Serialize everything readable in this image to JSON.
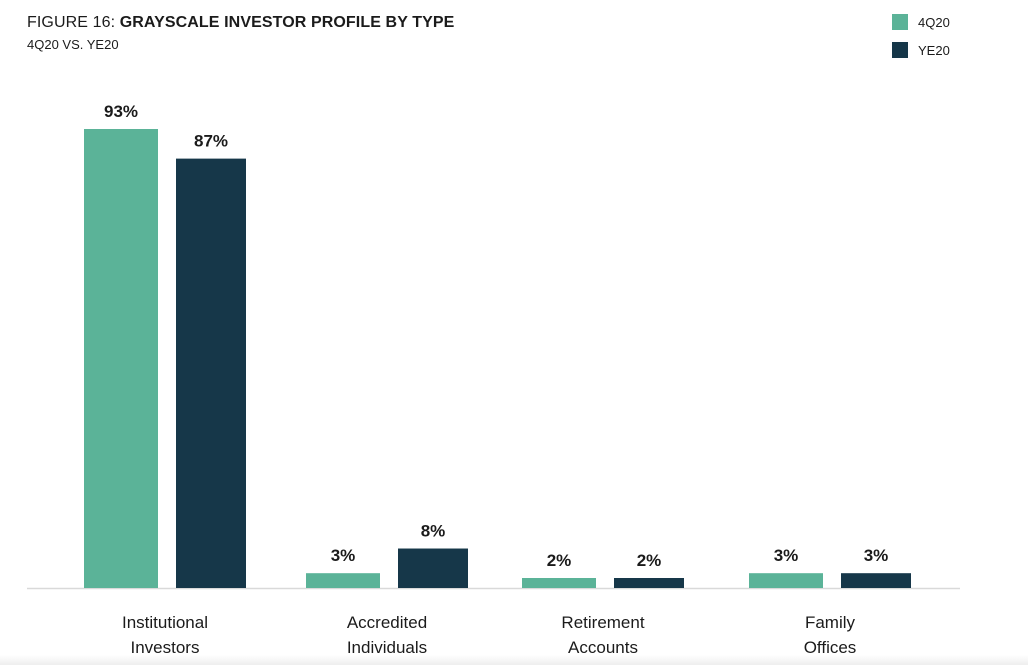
{
  "title": {
    "prefix": "FIGURE 16: ",
    "main": "GRAYSCALE INVESTOR PROFILE BY TYPE"
  },
  "subtitle": "4Q20 VS. YE20",
  "colors": {
    "series_4q20": "#5bb398",
    "series_ye20": "#163749",
    "axis": "#d9d9d9",
    "text": "#1b1b1b"
  },
  "chart_data": {
    "type": "bar",
    "title": "GRAYSCALE INVESTOR PROFILE BY TYPE",
    "subtitle": "4Q20 VS. YE20",
    "categories": [
      [
        "Institutional",
        "Investors"
      ],
      [
        "Accredited",
        "Individuals"
      ],
      [
        "Retirement",
        "Accounts"
      ],
      [
        "Family",
        "Offices"
      ]
    ],
    "series": [
      {
        "name": "4Q20",
        "values": [
          93,
          3,
          2,
          3
        ],
        "labels": [
          "93%",
          "3%",
          "2%",
          "3%"
        ]
      },
      {
        "name": "YE20",
        "values": [
          87,
          8,
          2,
          3
        ],
        "labels": [
          "87%",
          "8%",
          "2%",
          "3%"
        ]
      }
    ],
    "unit": "%",
    "ylim": [
      0,
      93
    ],
    "grid": false,
    "legend": "top-right"
  }
}
